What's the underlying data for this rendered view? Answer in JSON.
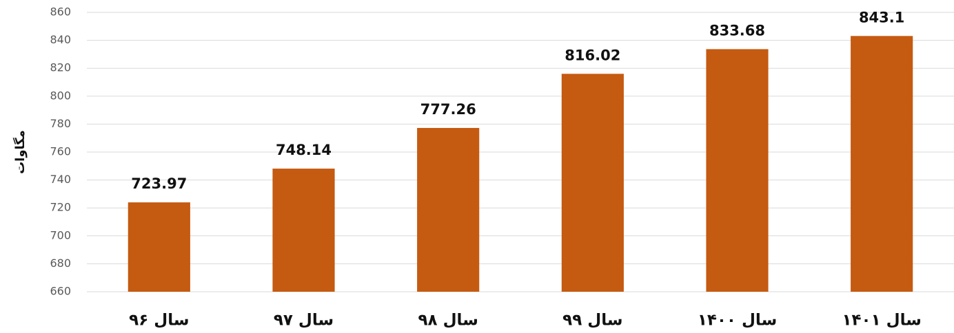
{
  "chart_data": {
    "type": "bar",
    "y_label": "مگاوات",
    "categories": [
      "سال ۹۶",
      "سال ۹۷",
      "سال ۹۸",
      "سال ۹۹",
      "سال ۱۴۰۰",
      "سال ۱۴۰۱"
    ],
    "values": [
      723.97,
      748.14,
      777.26,
      816.02,
      833.68,
      843.1
    ],
    "color": "#c55a11",
    "ylim": [
      660,
      860
    ],
    "yticks": [
      660,
      680,
      700,
      720,
      740,
      760,
      780,
      800,
      820,
      840,
      860
    ],
    "grid": true
  }
}
